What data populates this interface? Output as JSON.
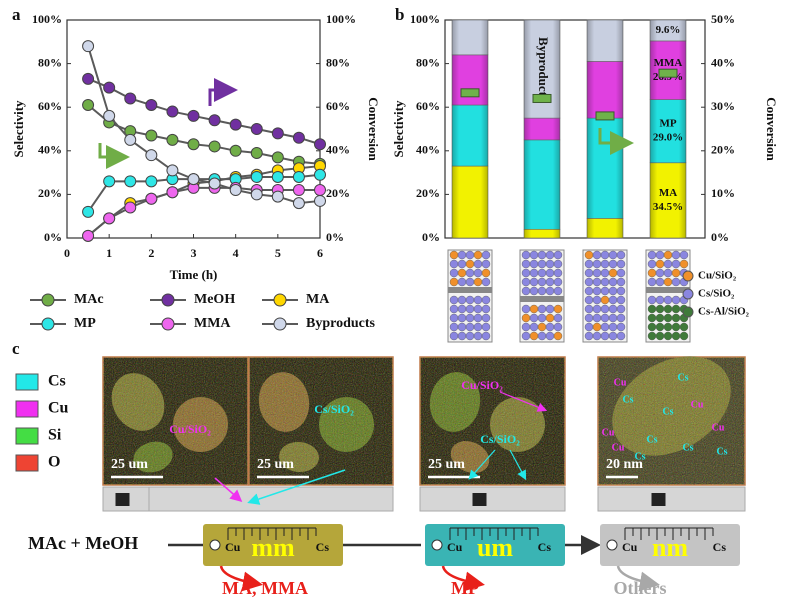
{
  "panel_labels": [
    "a",
    "b",
    "c"
  ],
  "chart_data": [
    {
      "type": "line",
      "xlabel": "Time (h)",
      "ylabel": "Selectivity",
      "y2label": "Conversion",
      "x": [
        0.5,
        1,
        1.5,
        2,
        2.5,
        3,
        3.5,
        4,
        4.5,
        5,
        5.5,
        6
      ],
      "xlim": [
        0,
        6
      ],
      "xticks": [
        0,
        1,
        2,
        3,
        4,
        5,
        6
      ],
      "ylim": [
        0,
        100
      ],
      "yticks": [
        {
          "value": 0,
          "label": "0%"
        },
        {
          "value": 20,
          "label": "20%"
        },
        {
          "value": 40,
          "label": "40%"
        },
        {
          "value": 60,
          "label": "60%"
        },
        {
          "value": 80,
          "label": "80%"
        },
        {
          "value": 100,
          "label": "100%"
        }
      ],
      "y2lim": [
        0,
        100
      ],
      "y2ticks": [
        {
          "value": 0,
          "label": "0%"
        },
        {
          "value": 20,
          "label": "20%"
        },
        {
          "value": 40,
          "label": "40%"
        },
        {
          "value": 60,
          "label": "60%"
        },
        {
          "value": 80,
          "label": "80%"
        },
        {
          "value": 100,
          "label": "100%"
        }
      ],
      "series": [
        {
          "name": "MAc",
          "color": "#70ad47",
          "axis": "y2",
          "values": [
            61,
            53,
            49,
            47,
            45,
            43,
            42,
            40,
            39,
            37,
            35,
            34
          ]
        },
        {
          "name": "MeOH",
          "color": "#7030a0",
          "axis": "y2",
          "values": [
            73,
            69,
            64,
            61,
            58,
            56,
            54,
            52,
            50,
            48,
            46,
            43
          ]
        },
        {
          "name": "MA",
          "color": "#ffd700",
          "values": [
            1,
            9,
            16,
            18,
            21,
            25,
            26,
            28,
            29,
            31,
            32,
            33
          ]
        },
        {
          "name": "MP",
          "color": "#2ee6e6",
          "values": [
            12,
            26,
            26,
            26,
            27,
            27,
            27,
            27,
            28,
            28,
            28,
            29
          ]
        },
        {
          "name": "MMA",
          "color": "#ee66ee",
          "values": [
            1,
            9,
            14,
            18,
            21,
            23,
            23,
            23,
            22,
            22,
            22,
            22
          ]
        },
        {
          "name": "Byproducts",
          "color": "#d0d8ea",
          "values": [
            88,
            56,
            45,
            38,
            31,
            27,
            25,
            22,
            20,
            19,
            16,
            17
          ]
        }
      ]
    },
    {
      "type": "bar",
      "stacked": true,
      "ylabel": "Selectivity",
      "y2label": "Conversion",
      "categories": [
        null,
        null,
        null,
        null
      ],
      "ylim": [
        0,
        100
      ],
      "yticks": [
        {
          "value": 0,
          "label": "0%"
        },
        {
          "value": 20,
          "label": "20%"
        },
        {
          "value": 40,
          "label": "40%"
        },
        {
          "value": 60,
          "label": "60%"
        },
        {
          "value": 80,
          "label": "80%"
        },
        {
          "value": 100,
          "label": "100%"
        }
      ],
      "y2lim": [
        0,
        50
      ],
      "y2ticks": [
        {
          "value": 0,
          "label": "0%"
        },
        {
          "value": 10,
          "label": "10%"
        },
        {
          "value": 20,
          "label": "20%"
        },
        {
          "value": 30,
          "label": "30%"
        },
        {
          "value": 40,
          "label": "40%"
        },
        {
          "value": 50,
          "label": "50%"
        }
      ],
      "series": [
        {
          "name": "MA",
          "color": "#f2f200",
          "values": [
            33,
            4,
            9,
            34.5
          ],
          "value_labels": [
            null,
            null,
            null,
            "34.5%"
          ]
        },
        {
          "name": "MP",
          "color": "#22e0e0",
          "values": [
            28,
            41,
            46,
            29.0
          ],
          "value_labels": [
            null,
            null,
            null,
            "29.0%"
          ]
        },
        {
          "name": "MMA",
          "color": "#e040e0",
          "values": [
            23,
            10,
            26,
            26.9
          ],
          "value_labels": [
            null,
            null,
            null,
            "26.9%"
          ]
        },
        {
          "name": "Byproducts",
          "color": "#c8cfe0",
          "values": [
            16,
            45,
            19,
            9.6
          ],
          "value_labels": [
            null,
            null,
            null,
            "9.6%"
          ]
        }
      ],
      "conversion": {
        "axis": "y2",
        "color": "#6fb24a",
        "values": [
          33.3,
          32,
          28,
          37.8
        ]
      }
    }
  ],
  "particle_legend": [
    {
      "name": "Cu/SiO₂",
      "color": "#f0902a"
    },
    {
      "name": "Cs/SiO₂",
      "color": "#8a86e0"
    },
    {
      "name": "Cs-Al/SiO₂",
      "color": "#3f7a3a"
    }
  ],
  "element_legend": [
    {
      "name": "Cs",
      "color": "#22e8e8"
    },
    {
      "name": "Cu",
      "color": "#f030f0"
    },
    {
      "name": "Si",
      "color": "#44dd44"
    },
    {
      "name": "O",
      "color": "#ee4433"
    }
  ],
  "images": [
    {
      "labels": [
        "Cu/SiO₂"
      ],
      "scale": "25 um"
    },
    {
      "labels": [
        "Cs/SiO₂"
      ],
      "scale": "25 um"
    },
    {
      "labels": [
        "Cu/SiO₂",
        "Cs/SiO₂"
      ],
      "scale": "25 um"
    },
    {
      "labels": [
        "Cu",
        "Cs",
        "Cs",
        "Cu",
        "Cs",
        "Cu",
        "Cs",
        "Cu",
        "Cu",
        "Cs",
        "Cs",
        "Cs"
      ],
      "scale": "20 nm"
    }
  ],
  "reaction": {
    "reactants": "MAc + MeOH",
    "stages": [
      {
        "size": "mm",
        "left": "Cu",
        "right": "Cs",
        "products": "MA, MMA",
        "color": "#b5a63a",
        "product_color": "#e8201a"
      },
      {
        "size": "um",
        "left": "Cu",
        "right": "Cs",
        "products": "MP",
        "color": "#3ab4b4",
        "product_color": "#e8201a"
      },
      {
        "size": "nm",
        "left": "Cu",
        "right": "Cs",
        "products": "Others",
        "color": "#c4c4c4",
        "product_color": "#a8a8a8"
      }
    ]
  }
}
